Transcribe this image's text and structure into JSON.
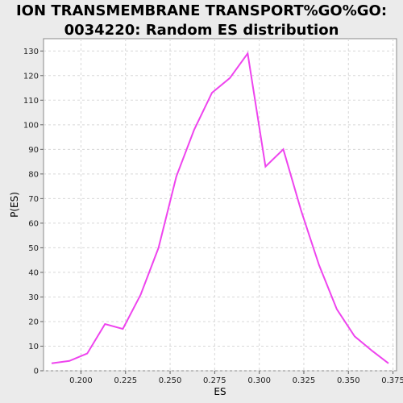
{
  "chart_data": {
    "type": "line",
    "title_line1": "ION TRANSMEMBRANE TRANSPORT%GO%GO:",
    "title_line2": "0034220: Random ES distribution",
    "xlabel": "ES",
    "ylabel": "P(ES)",
    "xlim": [
      0.179,
      0.377
    ],
    "ylim": [
      0,
      135
    ],
    "xticks": [
      "0.200",
      "0.225",
      "0.250",
      "0.275",
      "0.300",
      "0.325",
      "0.350",
      "0.375"
    ],
    "xtick_values": [
      0.2,
      0.225,
      0.25,
      0.275,
      0.3,
      0.325,
      0.35,
      0.375
    ],
    "yticks": [
      0,
      10,
      20,
      30,
      40,
      50,
      60,
      70,
      80,
      90,
      100,
      110,
      120,
      130
    ],
    "grid": true,
    "line_color": "#ee44ee",
    "series": [
      {
        "x": [
          0.1835,
          0.1935,
          0.2035,
          0.2135,
          0.2235,
          0.2335,
          0.2435,
          0.2535,
          0.2635,
          0.2735,
          0.2835,
          0.2935,
          0.3035,
          0.3135,
          0.3235,
          0.3335,
          0.3435,
          0.3535,
          0.3635,
          0.3725
        ],
        "y": [
          3,
          4,
          7,
          19,
          17,
          31,
          50,
          79,
          98,
          113,
          119,
          129,
          83,
          90,
          65,
          43,
          25,
          14,
          8,
          3
        ]
      }
    ]
  }
}
